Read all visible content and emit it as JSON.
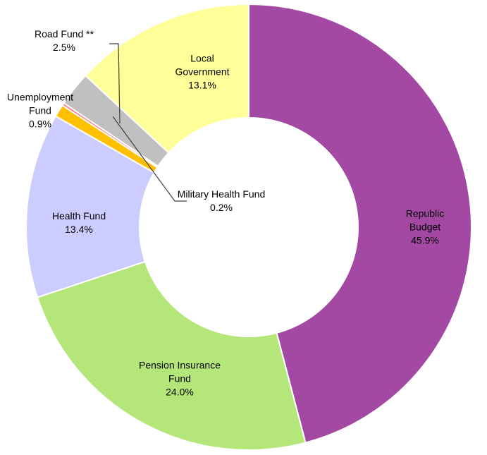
{
  "chart_data": {
    "type": "donut",
    "categories": [
      "Republic Budget",
      "Pension Insurance Fund",
      "Health Fund",
      "Unemployment Fund",
      "Military Health Fund",
      "Road Fund **",
      "Local Government"
    ],
    "values": [
      45.9,
      24.0,
      13.4,
      0.9,
      0.2,
      2.5,
      13.1
    ],
    "value_labels": [
      "45.9%",
      "24.0%",
      "13.4%",
      "0.9%",
      "0.2%",
      "2.5%",
      "13.1%"
    ],
    "colors": [
      "#a349a4",
      "#b5e67a",
      "#ccccff",
      "#ffc000",
      "#ff7c80",
      "#c0c0c0",
      "#ffff99"
    ]
  }
}
